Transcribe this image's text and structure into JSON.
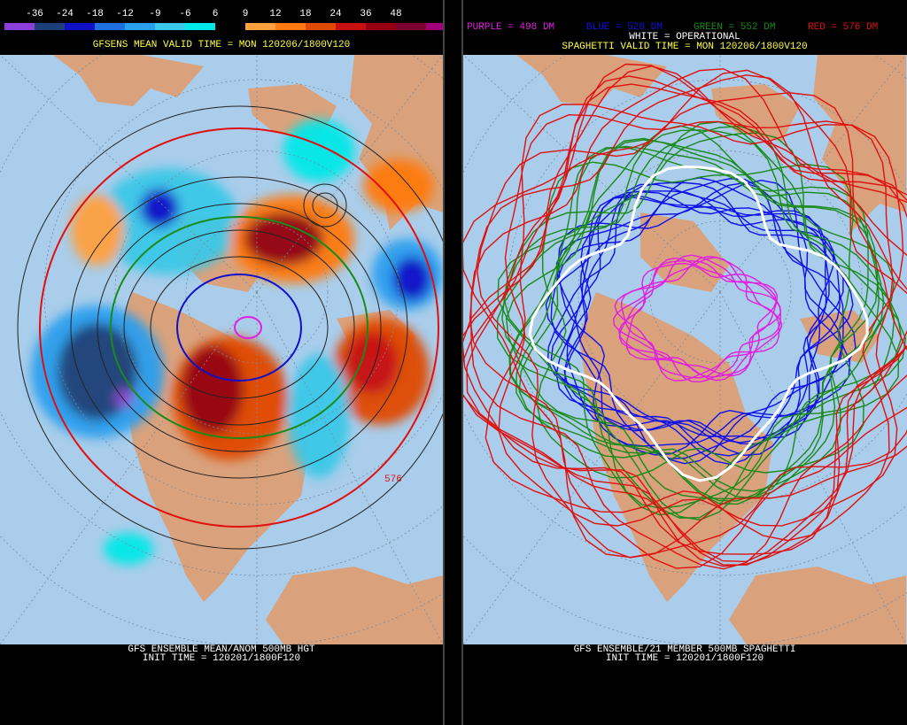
{
  "left_panel": {
    "legend": {
      "labels": [
        "-36",
        "-24",
        "-18",
        "-12",
        "-9",
        "-6",
        "6",
        "9",
        "12",
        "18",
        "24",
        "36",
        "48"
      ]
    },
    "title": "GFSENS MEAN VALID TIME = MON 120206/1800V120",
    "contour_label": "576",
    "footer": {
      "line1": "GFS ENSEMBLE MEAN/ANOM 500MB HGT",
      "line2": "INIT TIME = 120201/1800F120"
    }
  },
  "right_panel": {
    "key": {
      "purple": "PURPLE = 498 DM",
      "blue": "BLUE = 528 DM",
      "green": "GREEN = 552 DM",
      "red": "RED = 576 DM",
      "white": "WHITE = OPERATIONAL"
    },
    "title": "SPAGHETTI VALID TIME = MON 120206/1800V120",
    "footer": {
      "line1": "GFS ENSEMBLE/21 MEMBER 500MB SPAGHETTI",
      "line2": "INIT TIME = 120201/1800F120"
    }
  }
}
